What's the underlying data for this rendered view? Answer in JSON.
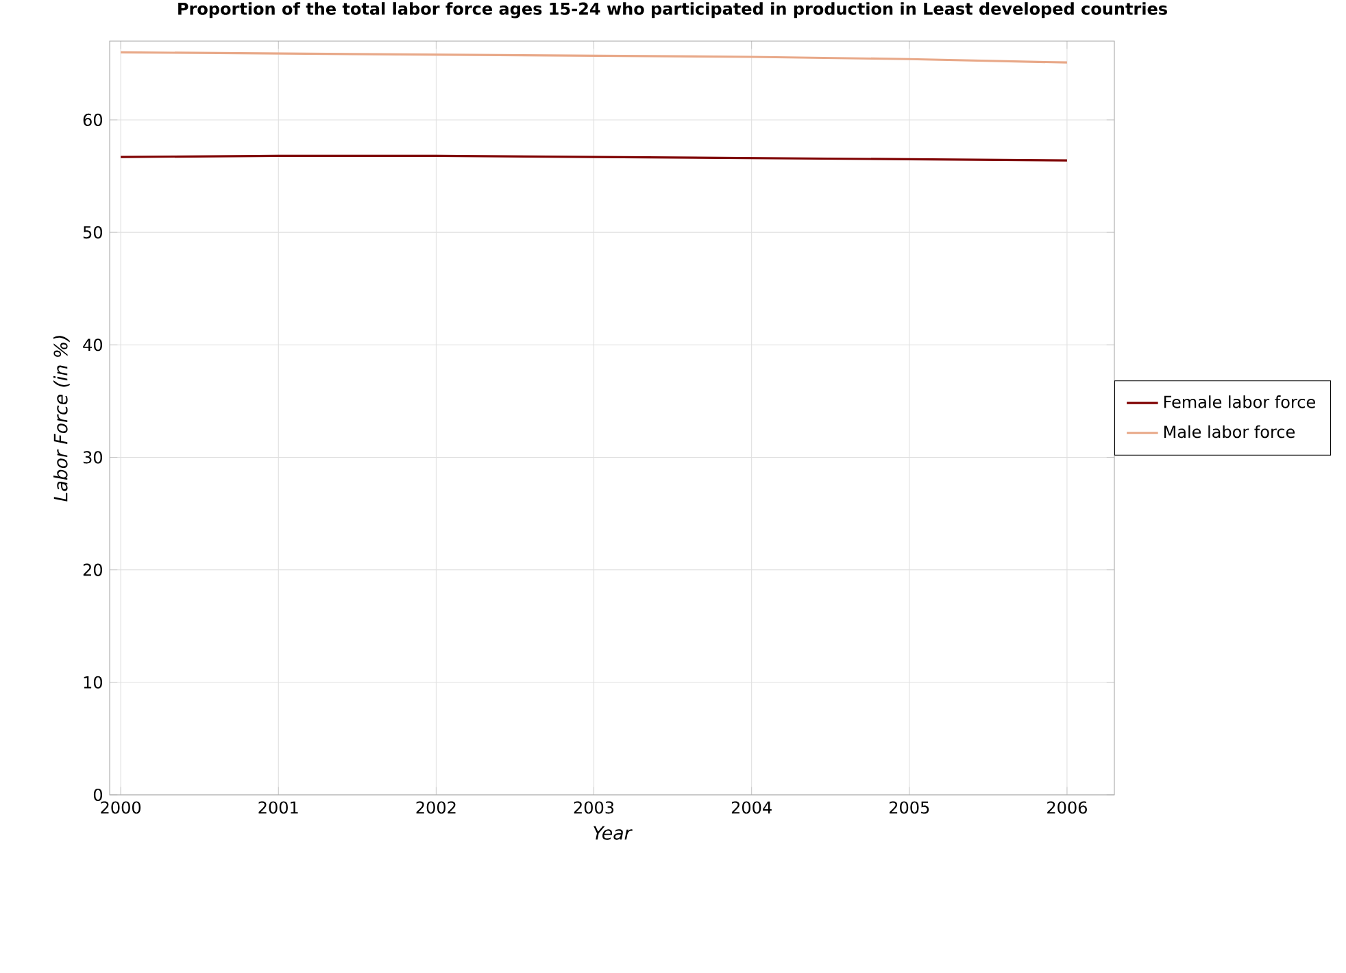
{
  "chart_data": {
    "type": "line",
    "title": "Proportion of the total labor force ages 15-24 who participated in production in Least developed countries",
    "xlabel": "Year",
    "ylabel": "Labor Force (in %)",
    "x": [
      2000,
      2001,
      2002,
      2003,
      2004,
      2005,
      2006
    ],
    "series": [
      {
        "name": "Female labor force",
        "color": "#7f0000",
        "values": [
          56.7,
          56.8,
          56.8,
          56.7,
          56.6,
          56.5,
          56.4
        ]
      },
      {
        "name": "Male labor force",
        "color": "#e8a888",
        "values": [
          66.0,
          65.9,
          65.8,
          65.7,
          65.6,
          65.4,
          65.1
        ]
      }
    ],
    "xlim": [
      1999.93,
      2006.3
    ],
    "ylim": [
      0,
      67
    ],
    "xticks": [
      2000,
      2001,
      2002,
      2003,
      2004,
      2005,
      2006
    ],
    "yticks": [
      0,
      10,
      20,
      30,
      40,
      50,
      60
    ],
    "grid": true,
    "legend": "right",
    "marker": "none",
    "line_style": "solid"
  }
}
